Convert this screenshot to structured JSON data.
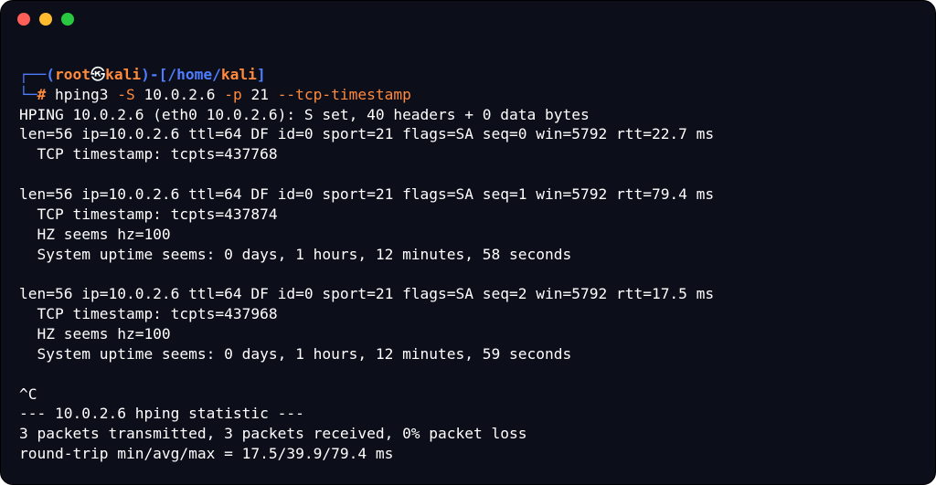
{
  "colors": {
    "bg": "#0c0e1a",
    "text": "#ffffff",
    "blue": "#4e7dff",
    "orange": "#ff8a3c",
    "traffic_red": "#ff5f57",
    "traffic_yellow": "#febc2e",
    "traffic_green": "#28c840"
  },
  "prompt": {
    "top_corner": "┌──(",
    "user": "root",
    "symbol": "㉿",
    "host": "kali",
    "after_host": ")-[",
    "path_root": "/home/",
    "path_last": "kali",
    "close_bracket": "]",
    "bot_corner": "└─",
    "hash": "# "
  },
  "command": {
    "bin": "hping3 ",
    "flag_s": "-S",
    "ip": " 10.0.2.6 ",
    "flag_p": "-p",
    "port": " 21 ",
    "flag_ts": "--tcp-timestamp"
  },
  "output": {
    "l1": "HPING 10.0.2.6 (eth0 10.0.2.6): S set, 40 headers + 0 data bytes",
    "l2": "len=56 ip=10.0.2.6 ttl=64 DF id=0 sport=21 flags=SA seq=0 win=5792 rtt=22.7 ms",
    "l3": "  TCP timestamp: tcpts=437768",
    "blank1": " ",
    "l4": "len=56 ip=10.0.2.6 ttl=64 DF id=0 sport=21 flags=SA seq=1 win=5792 rtt=79.4 ms",
    "l5": "  TCP timestamp: tcpts=437874",
    "l6": "  HZ seems hz=100",
    "l7": "  System uptime seems: 0 days, 1 hours, 12 minutes, 58 seconds",
    "blank2": " ",
    "l8": "len=56 ip=10.0.2.6 ttl=64 DF id=0 sport=21 flags=SA seq=2 win=5792 rtt=17.5 ms",
    "l9": "  TCP timestamp: tcpts=437968",
    "l10": "  HZ seems hz=100",
    "l11": "  System uptime seems: 0 days, 1 hours, 12 minutes, 59 seconds",
    "blank3": " ",
    "l12": "^C",
    "l13": "--- 10.0.2.6 hping statistic ---",
    "l14": "3 packets transmitted, 3 packets received, 0% packet loss",
    "l15": "round-trip min/avg/max = 17.5/39.9/79.4 ms"
  }
}
